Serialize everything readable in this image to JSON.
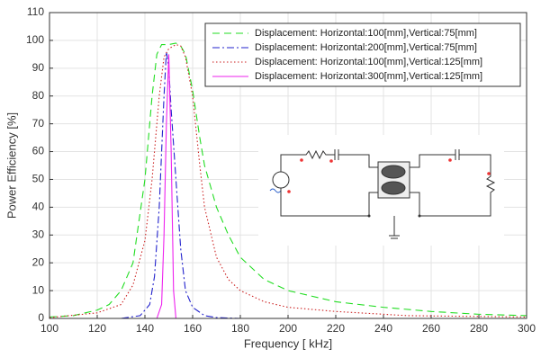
{
  "chart_data": {
    "type": "line",
    "xlabel": "Frequency [ kHz]",
    "ylabel": "Power Efficiency [%]",
    "xlim": [
      100,
      300
    ],
    "xticks": [
      100,
      120,
      140,
      160,
      180,
      200,
      220,
      240,
      260,
      280,
      300
    ],
    "ylim": [
      0,
      110
    ],
    "yticks": [
      0,
      10,
      20,
      30,
      40,
      50,
      60,
      70,
      80,
      90,
      100,
      110
    ],
    "grid": true,
    "legend": "upper right",
    "series": [
      {
        "name": "Displacement: Horizontal:100[mm],Vertical:75[mm]",
        "color": "#22dd22",
        "style": "dashed",
        "x": [
          100,
          110,
          120,
          125,
          130,
          135,
          140,
          143,
          145,
          147,
          150,
          153,
          155,
          157,
          160,
          163,
          165,
          170,
          175,
          180,
          190,
          200,
          220,
          240,
          260,
          280,
          300
        ],
        "values": [
          0.5,
          1,
          3,
          5,
          10,
          20,
          50,
          80,
          95,
          98.5,
          98.5,
          99,
          98,
          95,
          82,
          65,
          55,
          40,
          30,
          22,
          14,
          10,
          6,
          4,
          2.5,
          1.5,
          1
        ]
      },
      {
        "name": "Displacement: Horizontal:200[mm],Vertical:75[mm]",
        "color": "#2222cc",
        "style": "dashdot",
        "x": [
          100,
          130,
          138,
          142,
          144,
          146,
          148,
          149,
          150,
          151,
          153,
          155,
          157,
          160,
          165,
          170,
          180,
          300
        ],
        "values": [
          0,
          0,
          1,
          5,
          15,
          40,
          80,
          96,
          90,
          75,
          50,
          25,
          10,
          4,
          1,
          0.3,
          0,
          0
        ]
      },
      {
        "name": "Displacement: Horizontal:100[mm],Vertical:125[mm]",
        "color": "#cc2222",
        "style": "dotted",
        "x": [
          100,
          120,
          130,
          135,
          140,
          143,
          146,
          148,
          150,
          153,
          155,
          157,
          160,
          163,
          165,
          170,
          175,
          180,
          190,
          200,
          220,
          250,
          300
        ],
        "values": [
          0.3,
          2,
          5,
          12,
          28,
          50,
          80,
          94,
          97,
          98.5,
          98,
          94,
          80,
          55,
          40,
          22,
          14,
          10,
          6,
          4,
          2.5,
          1,
          0.5
        ]
      },
      {
        "name": "Displacement: Horizontal:300[mm],Vertical:125[mm]",
        "color": "#ee22ee",
        "style": "solid",
        "x": [
          100,
          145,
          147,
          148,
          149,
          150,
          151,
          152,
          153,
          300
        ],
        "values": [
          0,
          0,
          5,
          30,
          70,
          95,
          60,
          10,
          0,
          0
        ]
      }
    ]
  }
}
